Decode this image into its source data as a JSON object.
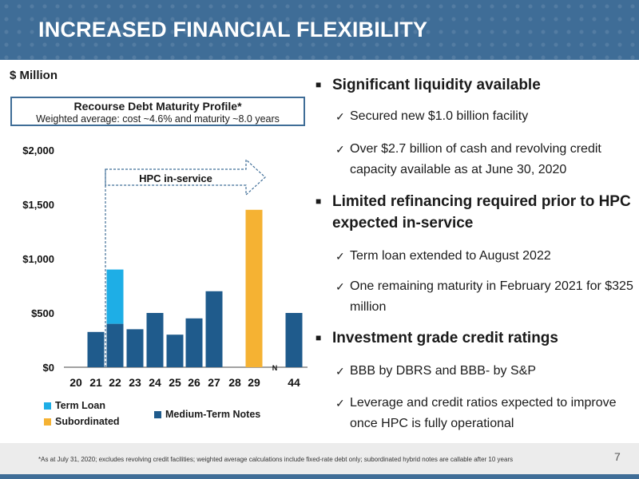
{
  "title": "INCREASED FINANCIAL FLEXIBILITY",
  "unit_label": "$ Million",
  "profile": {
    "title": "Recourse Debt Maturity Profile*",
    "subtitle": "Weighted average: cost ~4.6% and maturity ~8.0 years"
  },
  "bullets": [
    {
      "text": "Significant liquidity available",
      "subs": [
        "Secured new $1.0 billion facility",
        "Over $2.7 billion of cash and revolving credit capacity available as at June 30, 2020"
      ]
    },
    {
      "text": "Limited refinancing required prior to HPC expected in-service",
      "subs": [
        "Term loan extended to August 2022",
        "One remaining maturity in February 2021 for $325 million"
      ]
    },
    {
      "text": "Investment grade credit ratings",
      "subs": [
        "BBB by DBRS and BBB- by S&P",
        "Leverage and credit ratios expected to improve once HPC is fully operational"
      ]
    }
  ],
  "footnote": "*As at July 31, 2020; excludes revolving credit facilities; weighted average calculations include fixed-rate debt only; subordinated hybrid notes are callable after 10 years",
  "page_number": "7",
  "colors": {
    "header": "#3f6d97",
    "medium_term_notes": "#1f5b8c",
    "term_loan": "#1eaee6",
    "subordinated": "#f5b233"
  },
  "chart_data": {
    "type": "bar",
    "stacked": true,
    "categories": [
      "20",
      "21",
      "22",
      "23",
      "24",
      "25",
      "26",
      "27",
      "28",
      "29",
      "44"
    ],
    "axis_break_label": "N",
    "series": [
      {
        "name": "Medium-Term Notes",
        "values": [
          0,
          325,
          400,
          350,
          500,
          300,
          450,
          700,
          0,
          0,
          500
        ]
      },
      {
        "name": "Term Loan",
        "values": [
          0,
          0,
          500,
          0,
          0,
          0,
          0,
          0,
          0,
          0,
          0
        ]
      },
      {
        "name": "Subordinated",
        "values": [
          0,
          0,
          0,
          0,
          0,
          0,
          0,
          0,
          0,
          1450,
          0
        ]
      }
    ],
    "y_ticks": [
      "$0",
      "$500",
      "$1,000",
      "$1,500",
      "$2,000"
    ],
    "ylim": [
      0,
      2000
    ],
    "annotation": "HPC in-service",
    "legend_position": "bottom",
    "grid": false
  }
}
